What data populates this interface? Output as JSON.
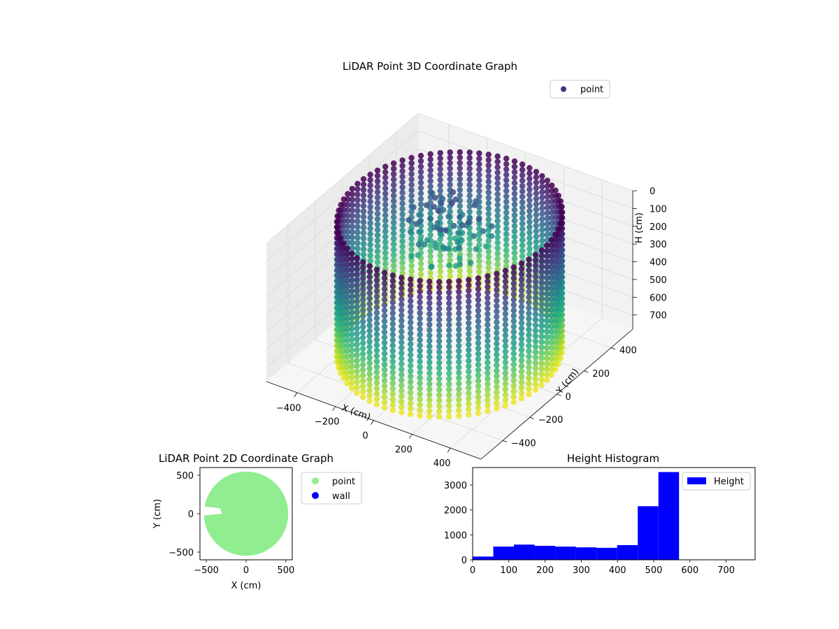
{
  "chart_data": [
    {
      "type": "scatter",
      "dimensions": 3,
      "title": "LiDAR Point 3D Coordinate Graph",
      "xlabel": "X (cm)",
      "ylabel": "Y (cm)",
      "zlabel": "H (cm)",
      "xticks": [
        "−400",
        "−200",
        "0",
        "200",
        "400"
      ],
      "yticks": [
        "400",
        "200",
        "0",
        "−200",
        "−400"
      ],
      "zticks": [
        "0",
        "100",
        "200",
        "300",
        "400",
        "500",
        "600",
        "700"
      ],
      "xlim": [
        -560,
        560
      ],
      "ylim": [
        -560,
        560
      ],
      "zlim": [
        0,
        780
      ],
      "z_inverted": true,
      "colormap": "viridis",
      "color_by": "height",
      "legend": {
        "entries": [
          {
            "name": "point",
            "color": "#3b3483"
          }
        ],
        "placement": "top-right"
      },
      "wall": {
        "shape": "cylinder",
        "radius": 480,
        "height_range": [
          0,
          760
        ],
        "center": [
          0,
          0
        ]
      },
      "grid": true
    },
    {
      "type": "scatter",
      "title": "LiDAR Point 2D Coordinate Graph",
      "xlabel": "X (cm)",
      "ylabel": "Y (cm)",
      "xticks": [
        "−500",
        "0",
        "500"
      ],
      "yticks": [
        "500",
        "0",
        "−500"
      ],
      "xlim": [
        -580,
        580
      ],
      "ylim": [
        -600,
        600
      ],
      "series": [
        {
          "name": "point",
          "color": "#90ee90",
          "shape": "disc",
          "radius": 530,
          "center": [
            0,
            0
          ]
        },
        {
          "name": "wall",
          "color": "#0000ff"
        }
      ],
      "legend": {
        "placement": "outside-right"
      }
    },
    {
      "type": "bar",
      "title": "Height Histogram",
      "legend": {
        "entries": [
          {
            "name": "Height",
            "color": "#0000ff"
          }
        ],
        "placement": "top-right"
      },
      "xticks": [
        "0",
        "100",
        "200",
        "300",
        "400",
        "500",
        "600",
        "700"
      ],
      "yticks": [
        "0",
        "1000",
        "2000",
        "3000"
      ],
      "xlim": [
        0,
        780
      ],
      "ylim": [
        0,
        3700
      ],
      "bins": [
        {
          "x0": 0,
          "x1": 57,
          "count": 130
        },
        {
          "x0": 57,
          "x1": 114,
          "count": 530
        },
        {
          "x0": 114,
          "x1": 171,
          "count": 610
        },
        {
          "x0": 171,
          "x1": 228,
          "count": 560
        },
        {
          "x0": 228,
          "x1": 285,
          "count": 530
        },
        {
          "x0": 285,
          "x1": 342,
          "count": 500
        },
        {
          "x0": 342,
          "x1": 399,
          "count": 480
        },
        {
          "x0": 399,
          "x1": 456,
          "count": 590
        },
        {
          "x0": 456,
          "x1": 513,
          "count": 2150
        },
        {
          "x0": 513,
          "x1": 570,
          "count": 3520
        }
      ],
      "color": "#0000ff"
    }
  ]
}
